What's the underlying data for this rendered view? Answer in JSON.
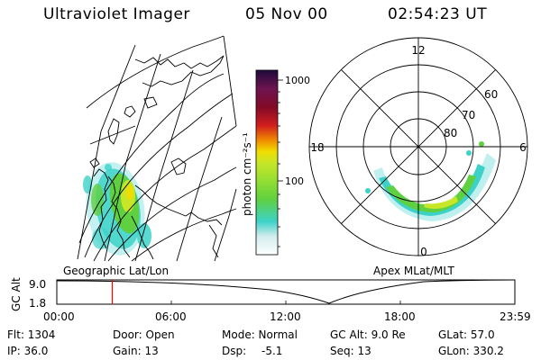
{
  "header": {
    "title": "Ultraviolet Imager",
    "date": "05 Nov 00",
    "time": "02:54:23 UT"
  },
  "colorbar": {
    "unit_label": "photon cm⁻²s⁻¹",
    "ticks": [
      "1000",
      "100"
    ]
  },
  "polar": {
    "mlt_labels": [
      "12",
      "18",
      "6",
      "0"
    ],
    "lat_labels": [
      "60",
      "70",
      "80"
    ]
  },
  "panel_labels": {
    "left": "Geographic Lat/Lon",
    "right": "Apex MLat/MLT"
  },
  "altitude_strip": {
    "axis_label": "GC Alt",
    "y_ticks": [
      "9.0",
      "1.8"
    ],
    "time_ticks": [
      "00:00",
      "06:00",
      "12:00",
      "18:00",
      "23:59"
    ],
    "current_time_fraction": 0.121
  },
  "status": {
    "flt": "Flt: 1304",
    "ip": "IP: 36.0",
    "door": "Door: Open",
    "gain": "Gain: 13",
    "mode": "Mode: Normal",
    "dsp_label": "Dsp:",
    "dsp_value": "-5.1",
    "gc_alt": "GC Alt: 9.0 Re",
    "seq": "Seq: 13",
    "glat": "GLat:  57.0",
    "glon": "GLon: 330.2"
  },
  "colors": {
    "low": "#e8f0ff",
    "cyan": "#3cd2c8",
    "green": "#5fd040",
    "yellow_green": "#c8e628",
    "yellow": "#f0dc00",
    "orange": "#f08c00",
    "red": "#d21e1e",
    "dark_red": "#820a28",
    "top": "#1e0a3c",
    "marker": "#ff0000"
  }
}
